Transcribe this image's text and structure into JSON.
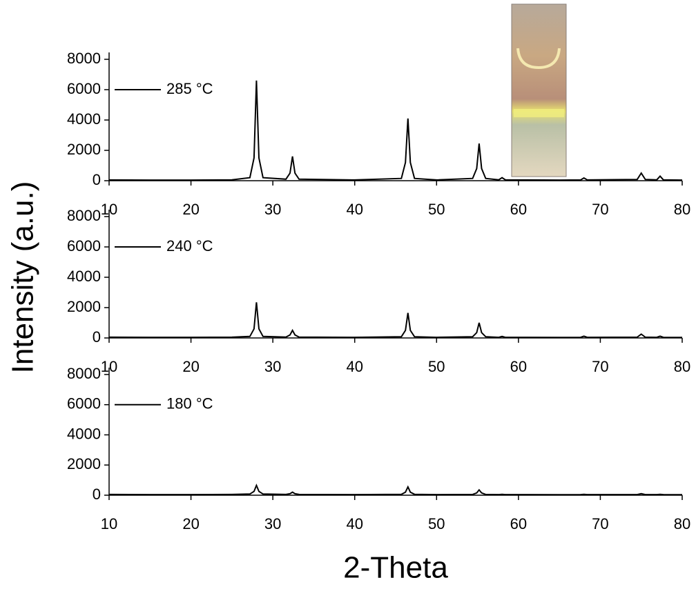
{
  "chart_data": [
    {
      "type": "line",
      "xlim": [
        10,
        80
      ],
      "ylim": [
        0,
        8000
      ],
      "xticks": [
        10,
        20,
        30,
        40,
        50,
        60,
        70,
        80
      ],
      "yticks": [
        0,
        2000,
        4000,
        6000,
        8000
      ],
      "legend": "upper left",
      "x": [
        10,
        15,
        20,
        25,
        27.2,
        27.7,
        28.0,
        28.3,
        28.8,
        31.6,
        32.1,
        32.4,
        32.7,
        33.2,
        40,
        45.7,
        46.2,
        46.5,
        46.8,
        47.3,
        50,
        54.4,
        54.9,
        55.2,
        55.5,
        56.0,
        57.6,
        58.0,
        58.4,
        65,
        67.6,
        68.0,
        68.4,
        74.5,
        75.0,
        75.5,
        76.9,
        77.3,
        77.7,
        80
      ],
      "series": [
        {
          "name": "285 °C",
          "color": "#000000",
          "values": [
            50,
            40,
            40,
            60,
            200,
            1500,
            6600,
            1500,
            200,
            100,
            500,
            1600,
            500,
            100,
            50,
            150,
            1200,
            4100,
            1200,
            150,
            50,
            150,
            800,
            2450,
            800,
            150,
            60,
            200,
            60,
            40,
            50,
            180,
            50,
            80,
            500,
            80,
            60,
            300,
            60,
            40
          ]
        }
      ]
    },
    {
      "type": "line",
      "xlim": [
        10,
        80
      ],
      "ylim": [
        0,
        8000
      ],
      "xticks": [
        10,
        20,
        30,
        40,
        50,
        60,
        70,
        80
      ],
      "yticks": [
        0,
        2000,
        4000,
        6000,
        8000
      ],
      "legend": "upper left",
      "ylabel": "Intensity (a.u.)",
      "x": [
        10,
        15,
        20,
        25,
        27.2,
        27.7,
        28.0,
        28.3,
        28.8,
        31.6,
        32.1,
        32.4,
        32.7,
        33.2,
        40,
        45.7,
        46.2,
        46.5,
        46.8,
        47.3,
        50,
        54.4,
        54.9,
        55.2,
        55.5,
        56.0,
        57.6,
        58.0,
        58.4,
        65,
        67.6,
        68.0,
        68.4,
        74.5,
        75.0,
        75.5,
        76.9,
        77.3,
        77.7,
        80
      ],
      "series": [
        {
          "name": "240 °C",
          "color": "#000000",
          "values": [
            50,
            40,
            40,
            50,
            100,
            600,
            2350,
            600,
            100,
            60,
            200,
            500,
            200,
            60,
            40,
            80,
            500,
            1650,
            500,
            80,
            40,
            80,
            350,
            1000,
            350,
            80,
            40,
            100,
            40,
            30,
            40,
            120,
            40,
            50,
            250,
            50,
            40,
            120,
            40,
            30
          ]
        }
      ]
    },
    {
      "type": "line",
      "xlim": [
        10,
        80
      ],
      "ylim": [
        0,
        8000
      ],
      "xticks": [
        10,
        20,
        30,
        40,
        50,
        60,
        70,
        80
      ],
      "yticks": [
        0,
        2000,
        4000,
        6000,
        8000
      ],
      "legend": "upper left",
      "xlabel": "2-Theta",
      "x": [
        10,
        15,
        20,
        25,
        27.2,
        27.7,
        28.0,
        28.3,
        28.8,
        31.6,
        32.1,
        32.4,
        32.7,
        33.2,
        40,
        45.7,
        46.2,
        46.5,
        46.8,
        47.3,
        50,
        54.4,
        54.9,
        55.2,
        55.5,
        56.0,
        57.6,
        58.0,
        58.4,
        65,
        67.6,
        68.0,
        68.4,
        74.5,
        75.0,
        75.5,
        76.9,
        77.3,
        77.7,
        80
      ],
      "series": [
        {
          "name": "180 °C",
          "color": "#000000",
          "values": [
            50,
            40,
            40,
            50,
            80,
            250,
            650,
            250,
            80,
            50,
            100,
            200,
            100,
            50,
            40,
            60,
            200,
            550,
            200,
            60,
            40,
            50,
            150,
            350,
            150,
            50,
            40,
            60,
            40,
            30,
            40,
            60,
            40,
            40,
            100,
            40,
            40,
            60,
            40,
            30
          ]
        }
      ]
    }
  ]
}
